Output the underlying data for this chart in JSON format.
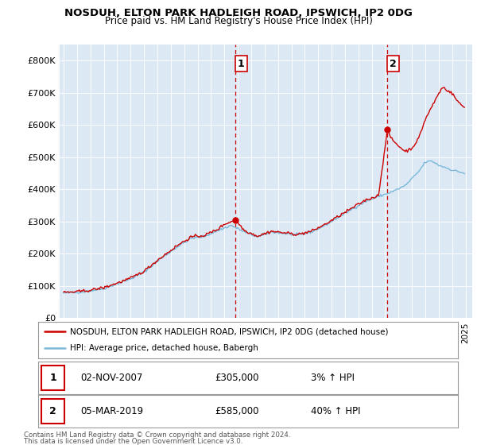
{
  "title": "NOSDUH, ELTON PARK HADLEIGH ROAD, IPSWICH, IP2 0DG",
  "subtitle": "Price paid vs. HM Land Registry's House Price Index (HPI)",
  "yticks": [
    0,
    100000,
    200000,
    300000,
    400000,
    500000,
    600000,
    700000,
    800000
  ],
  "ytick_labels": [
    "£0",
    "£100K",
    "£200K",
    "£300K",
    "£400K",
    "£500K",
    "£600K",
    "£700K",
    "£800K"
  ],
  "ylim": [
    0,
    850000
  ],
  "xlim_start": 1994.7,
  "xlim_end": 2025.5,
  "hpi_color": "#7ab8d9",
  "price_color": "#cc0000",
  "marker1_x": 2007.84,
  "marker1_y": 305000,
  "marker2_x": 2019.17,
  "marker2_y": 585000,
  "annotation1": "1",
  "annotation2": "2",
  "legend_label1": "NOSDUH, ELTON PARK HADLEIGH ROAD, IPSWICH, IP2 0DG (detached house)",
  "legend_label2": "HPI: Average price, detached house, Babergh",
  "table_row1_num": "1",
  "table_row1_date": "02-NOV-2007",
  "table_row1_price": "£305,000",
  "table_row1_change": "3% ↑ HPI",
  "table_row2_num": "2",
  "table_row2_date": "05-MAR-2019",
  "table_row2_price": "£585,000",
  "table_row2_change": "40% ↑ HPI",
  "footnote_line1": "Contains HM Land Registry data © Crown copyright and database right 2024.",
  "footnote_line2": "This data is licensed under the Open Government Licence v3.0.",
  "background_color": "#ffffff",
  "plot_bg_color": "#dce9f5"
}
